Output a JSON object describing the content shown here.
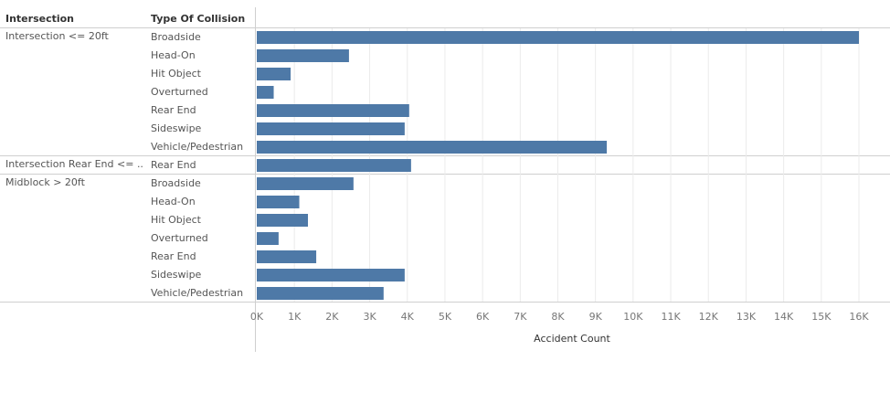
{
  "headers": {
    "intersection": "Intersection",
    "type": "Type Of Collision"
  },
  "colors": {
    "bar": "#4e79a7",
    "grid": "#ebebeb",
    "separator": "#cfcfcf"
  },
  "chart_data": {
    "type": "bar",
    "orientation": "horizontal",
    "xlabel": "Accident Count",
    "xlim": [
      0,
      16000
    ],
    "x_ticks": [
      {
        "value": 0,
        "label": "0K"
      },
      {
        "value": 1000,
        "label": "1K"
      },
      {
        "value": 2000,
        "label": "2K"
      },
      {
        "value": 3000,
        "label": "3K"
      },
      {
        "value": 4000,
        "label": "4K"
      },
      {
        "value": 5000,
        "label": "5K"
      },
      {
        "value": 6000,
        "label": "6K"
      },
      {
        "value": 7000,
        "label": "7K"
      },
      {
        "value": 8000,
        "label": "8K"
      },
      {
        "value": 9000,
        "label": "9K"
      },
      {
        "value": 10000,
        "label": "10K"
      },
      {
        "value": 11000,
        "label": "11K"
      },
      {
        "value": 12000,
        "label": "12K"
      },
      {
        "value": 13000,
        "label": "13K"
      },
      {
        "value": 14000,
        "label": "14K"
      },
      {
        "value": 15000,
        "label": "15K"
      },
      {
        "value": 16000,
        "label": "16K"
      }
    ],
    "grid": true,
    "groups": [
      {
        "name": "Intersection <= 20ft",
        "rows": [
          {
            "type": "Broadside",
            "value": 16000
          },
          {
            "type": "Head-On",
            "value": 2450
          },
          {
            "type": "Hit Object",
            "value": 900
          },
          {
            "type": "Overturned",
            "value": 450
          },
          {
            "type": "Rear End",
            "value": 4050
          },
          {
            "type": "Sideswipe",
            "value": 3930
          },
          {
            "type": "Vehicle/Pedestrian",
            "value": 9300
          }
        ]
      },
      {
        "name": "Intersection Rear End <= ..",
        "rows": [
          {
            "type": "Rear End",
            "value": 4100
          }
        ]
      },
      {
        "name": "Midblock > 20ft",
        "rows": [
          {
            "type": "Broadside",
            "value": 2570
          },
          {
            "type": "Head-On",
            "value": 1130
          },
          {
            "type": "Hit Object",
            "value": 1360
          },
          {
            "type": "Overturned",
            "value": 580
          },
          {
            "type": "Rear End",
            "value": 1580
          },
          {
            "type": "Sideswipe",
            "value": 3930
          },
          {
            "type": "Vehicle/Pedestrian",
            "value": 3370
          }
        ]
      }
    ]
  }
}
